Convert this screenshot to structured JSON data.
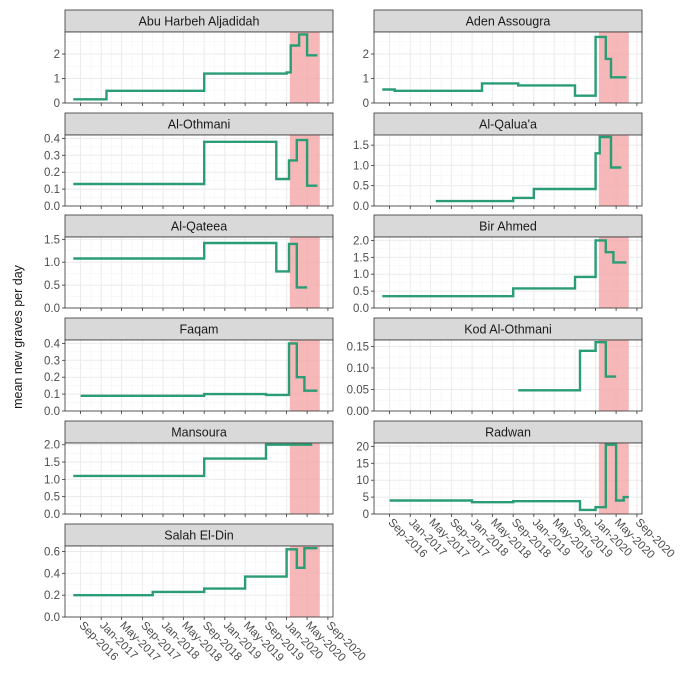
{
  "figure": {
    "ylabel": "mean new graves per day",
    "x_tick_labels": [
      "Sep-2016",
      "Jan-2017",
      "May-2017",
      "Sep-2017",
      "Jan-2018",
      "May-2018",
      "Sep-2018",
      "Jan-2019",
      "May-2019",
      "Sep-2019",
      "Jan-2020",
      "May-2020",
      "Sep-2020"
    ],
    "colors": {
      "line": "#2a9d74",
      "highlight": "#f4a6a6",
      "strip": "#d9d9d9",
      "panel_border": "#333333",
      "grid_major": "#ebebeb",
      "grid_minor": "#f5f5f5",
      "text": "#1a1a1a"
    }
  },
  "chart_data": [
    {
      "type": "line",
      "step": true,
      "title": "Abu Harbeh Aljadidah",
      "ylim": [
        0,
        2.9
      ],
      "yticks": [
        0,
        1,
        2
      ],
      "highlight": [
        "2020-01-20",
        "2020-07-15"
      ],
      "x": [
        "2016-07-20",
        "2017-02-01",
        "2018-09-01",
        "2020-01-01",
        "2020-01-25",
        "2020-03-15",
        "2020-05-01",
        "2020-07-01"
      ],
      "values": [
        0.15,
        0.5,
        1.2,
        1.25,
        2.35,
        2.8,
        1.95,
        1.95
      ]
    },
    {
      "type": "line",
      "step": true,
      "title": "Aden Assougra",
      "ylim": [
        0,
        2.9
      ],
      "yticks": [
        0,
        1,
        2
      ],
      "highlight": [
        "2020-01-20",
        "2020-07-15"
      ],
      "x": [
        "2016-07-20",
        "2016-10-01",
        "2018-03-01",
        "2018-10-01",
        "2019-09-01",
        "2020-01-01",
        "2020-03-01",
        "2020-04-01",
        "2020-07-01"
      ],
      "values": [
        0.55,
        0.5,
        0.8,
        0.72,
        0.3,
        2.7,
        1.8,
        1.05,
        1.05
      ]
    },
    {
      "type": "line",
      "step": true,
      "title": "Al-Othmani",
      "ylim": [
        0,
        0.42
      ],
      "yticks": [
        0.0,
        0.1,
        0.2,
        0.3,
        0.4
      ],
      "highlight": [
        "2020-01-20",
        "2020-07-15"
      ],
      "x": [
        "2016-07-20",
        "2018-09-01",
        "2019-11-01",
        "2020-01-15",
        "2020-03-01",
        "2020-05-01",
        "2020-07-01"
      ],
      "values": [
        0.13,
        0.38,
        0.16,
        0.27,
        0.39,
        0.12,
        0.12
      ]
    },
    {
      "type": "line",
      "step": true,
      "title": "Al-Qalua'a",
      "ylim": [
        0,
        1.75
      ],
      "yticks": [
        0.0,
        0.5,
        1.0,
        1.5
      ],
      "highlight": [
        "2020-01-20",
        "2020-07-15"
      ],
      "x": [
        "2017-06-01",
        "2018-09-01",
        "2019-01-01",
        "2020-01-01",
        "2020-01-25",
        "2020-04-01",
        "2020-06-01"
      ],
      "values": [
        0.12,
        0.2,
        0.42,
        1.3,
        1.7,
        0.95,
        0.95
      ]
    },
    {
      "type": "line",
      "step": true,
      "title": "Al-Qateea",
      "ylim": [
        0,
        1.55
      ],
      "yticks": [
        0.0,
        0.5,
        1.0,
        1.5
      ],
      "highlight": [
        "2020-01-20",
        "2020-07-15"
      ],
      "x": [
        "2016-07-20",
        "2018-09-01",
        "2019-11-01",
        "2020-01-15",
        "2020-03-01",
        "2020-05-01"
      ],
      "values": [
        1.08,
        1.42,
        0.8,
        1.4,
        0.45,
        0.45
      ]
    },
    {
      "type": "line",
      "step": true,
      "title": "Bir Ahmed",
      "ylim": [
        0,
        2.1
      ],
      "yticks": [
        0.0,
        0.5,
        1.0,
        1.5,
        2.0
      ],
      "highlight": [
        "2020-01-20",
        "2020-07-15"
      ],
      "x": [
        "2016-07-20",
        "2018-09-01",
        "2019-09-01",
        "2020-01-01",
        "2020-03-01",
        "2020-04-15",
        "2020-07-01"
      ],
      "values": [
        0.35,
        0.58,
        0.92,
        2.0,
        1.65,
        1.35,
        1.35
      ]
    },
    {
      "type": "line",
      "step": true,
      "title": "Faqam",
      "ylim": [
        0,
        0.42
      ],
      "yticks": [
        0.0,
        0.1,
        0.2,
        0.3,
        0.4
      ],
      "highlight": [
        "2020-01-20",
        "2020-07-15"
      ],
      "x": [
        "2016-09-01",
        "2018-09-01",
        "2019-09-01",
        "2020-01-15",
        "2020-03-01",
        "2020-04-15",
        "2020-07-01"
      ],
      "values": [
        0.09,
        0.1,
        0.095,
        0.4,
        0.2,
        0.12,
        0.12
      ]
    },
    {
      "type": "line",
      "step": true,
      "title": "Kod Al-Othmani",
      "ylim": [
        0,
        0.165
      ],
      "yticks": [
        0.0,
        0.05,
        0.1,
        0.15
      ],
      "highlight": [
        "2020-01-20",
        "2020-07-15"
      ],
      "x": [
        "2018-10-01",
        "2019-10-01",
        "2020-01-01",
        "2020-03-01",
        "2020-05-01"
      ],
      "values": [
        0.048,
        0.14,
        0.16,
        0.08,
        0.08
      ]
    },
    {
      "type": "line",
      "step": true,
      "title": "Mansoura",
      "ylim": [
        0,
        2.05
      ],
      "yticks": [
        0.0,
        0.5,
        1.0,
        1.5,
        2.0
      ],
      "highlight": [
        "2020-01-20",
        "2020-07-15"
      ],
      "x": [
        "2016-07-20",
        "2018-09-01",
        "2019-09-01",
        "2020-06-01"
      ],
      "values": [
        1.1,
        1.6,
        2.0,
        2.0
      ]
    },
    {
      "type": "line",
      "step": true,
      "title": "Radwan",
      "ylim": [
        0,
        21
      ],
      "yticks": [
        0,
        5,
        10,
        15,
        20
      ],
      "highlight": [
        "2020-01-20",
        "2020-07-15"
      ],
      "x": [
        "2016-09-01",
        "2018-01-01",
        "2018-09-01",
        "2019-10-01",
        "2020-01-01",
        "2020-03-01",
        "2020-05-01",
        "2020-06-15",
        "2020-07-15"
      ],
      "values": [
        4.0,
        3.5,
        3.8,
        1.2,
        2.0,
        20.5,
        4.0,
        5.0,
        5.0
      ]
    },
    {
      "type": "line",
      "step": true,
      "title": "Salah El-Din",
      "ylim": [
        0,
        0.65
      ],
      "yticks": [
        0.0,
        0.2,
        0.4,
        0.6
      ],
      "highlight": [
        "2020-01-20",
        "2020-07-15"
      ],
      "x": [
        "2016-07-20",
        "2017-11-01",
        "2018-09-01",
        "2019-05-01",
        "2020-01-01",
        "2020-03-01",
        "2020-04-15",
        "2020-07-01"
      ],
      "values": [
        0.2,
        0.23,
        0.26,
        0.37,
        0.62,
        0.45,
        0.63,
        0.63
      ]
    }
  ]
}
